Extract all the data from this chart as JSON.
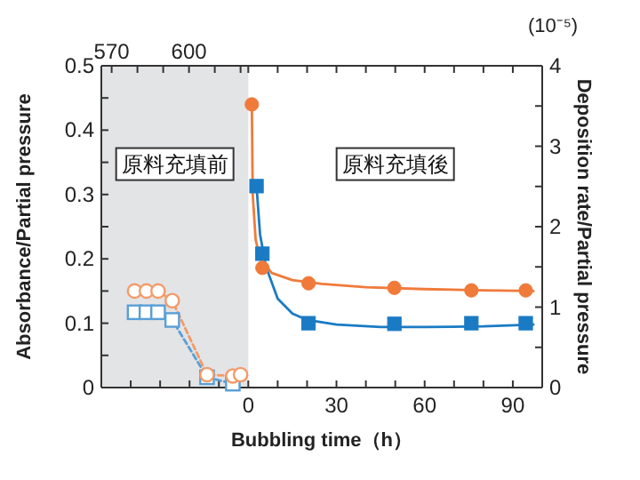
{
  "chart_data": {
    "type": "line",
    "xlabel": "Bubbling time（h）",
    "ylabel": "Absorbance/Partial pressure",
    "y2label": "Deposition rate/Partial pressure",
    "annotations": [
      "原料充填前",
      "原料充填後",
      "(10⁻⁵)"
    ],
    "xlim": [
      -50,
      100
    ],
    "xticks": [
      {
        "value": -50,
        "label": null
      },
      {
        "value": -40,
        "label": null
      },
      {
        "value": -30,
        "label": null
      },
      {
        "value": -20,
        "label": null
      },
      {
        "value": -10,
        "label": null
      },
      0,
      {
        "value": 10,
        "label": null
      },
      {
        "value": 20,
        "label": null
      },
      30,
      {
        "value": 40,
        "label": null
      },
      {
        "value": 50,
        "label": null
      },
      60,
      {
        "value": 70,
        "label": null
      },
      {
        "value": 80,
        "label": null
      },
      90
    ],
    "x2lim": [
      566,
      737
    ],
    "x2ticks": [
      570,
      {
        "value": 580,
        "label": null
      },
      {
        "value": 590,
        "label": null
      },
      600,
      {
        "value": 610,
        "label": null
      },
      {
        "value": 620,
        "label": null
      }
    ],
    "ylim": [
      0,
      0.5
    ],
    "yticks": [
      0,
      {
        "value": 0.05,
        "label": null
      },
      0.1,
      {
        "value": 0.15,
        "label": null
      },
      0.2,
      {
        "value": 0.25,
        "label": null
      },
      0.3,
      {
        "value": 0.35,
        "label": null
      },
      0.4,
      {
        "value": 0.45,
        "label": null
      },
      0.5
    ],
    "y2lim": [
      0,
      4
    ],
    "y2ticks": [
      0,
      {
        "value": 0.5,
        "label": null
      },
      1,
      {
        "value": 1.5,
        "label": null
      },
      2,
      {
        "value": 2.5,
        "label": null
      },
      3,
      {
        "value": 3.5,
        "label": null
      },
      4
    ],
    "bands": [
      {
        "axis": "x",
        "from": -50,
        "to": 0,
        "color": "#e3e4e6"
      }
    ],
    "series": [
      {
        "axis": "x2",
        "line_style": "dashed",
        "marker": "circle",
        "color": "#f39a68",
        "x": [
          578.9,
          583.5,
          588,
          593.5,
          607,
          617,
          620
        ],
        "values": [
          0.15,
          0.15,
          0.15,
          0.135,
          0.02,
          0.018,
          0.02
        ]
      },
      {
        "axis": "x2",
        "line_style": "dashed",
        "marker": "square",
        "color": "#5a9fd6",
        "x": [
          578.9,
          583.5,
          588,
          593.5,
          607,
          617
        ],
        "values": [
          0.117,
          0.117,
          0.117,
          0.105,
          0.016,
          0.006
        ]
      },
      {
        "line_style": "solid",
        "marker": "none",
        "color": "#f07a3a",
        "x": [
          1.2,
          1.5,
          2.5,
          4,
          8,
          15,
          25,
          40,
          60,
          80,
          97
        ],
        "values": [
          0.44,
          0.3,
          0.23,
          0.2,
          0.178,
          0.167,
          0.161,
          0.156,
          0.153,
          0.151,
          0.15
        ]
      },
      {
        "line_style": "solid",
        "marker": "none",
        "color": "#1a7bc4",
        "x": [
          2.8,
          4,
          6,
          10,
          15,
          20,
          30,
          45,
          60,
          80,
          97
        ],
        "values": [
          0.313,
          0.238,
          0.188,
          0.138,
          0.115,
          0.105,
          0.098,
          0.094,
          0.094,
          0.095,
          0.098
        ]
      },
      {
        "type": "scatter",
        "marker": "circle",
        "color": "#f07a3a",
        "x": [
          1.2,
          4.8,
          20.5,
          49.7,
          75.9,
          94.4
        ],
        "values": [
          0.44,
          0.186,
          0.162,
          0.155,
          0.151,
          0.151
        ]
      },
      {
        "type": "scatter",
        "marker": "square",
        "color": "#1a7bc4",
        "x": [
          2.8,
          4.8,
          20.5,
          49.7,
          75.9,
          94.4
        ],
        "values": [
          0.313,
          0.208,
          0.1,
          0.099,
          0.1,
          0.1
        ]
      }
    ]
  }
}
